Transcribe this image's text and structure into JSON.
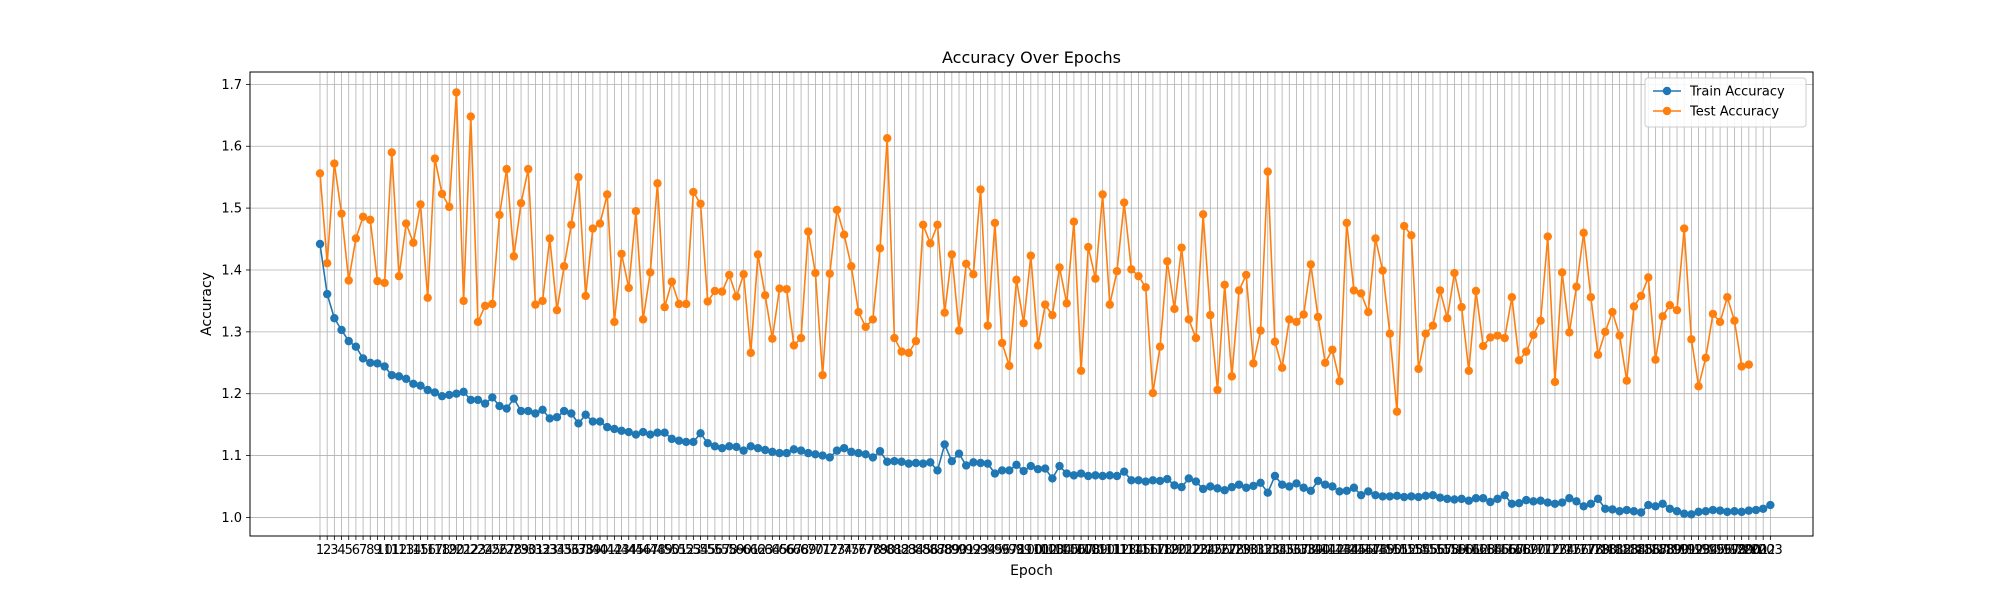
{
  "chart_data": {
    "type": "line",
    "title": "Accuracy Over Epochs",
    "xlabel": "Epoch",
    "ylabel": "Accuracy",
    "ylim": [
      0.97,
      1.72
    ],
    "yticks": [
      1.0,
      1.1,
      1.2,
      1.3,
      1.4,
      1.5,
      1.6,
      1.7
    ],
    "grid": true,
    "legend_position": "top-right",
    "x_start": 1,
    "series": [
      {
        "name": "Train Accuracy",
        "color": "#1f77b4",
        "values": [
          1.442,
          1.361,
          1.322,
          1.303,
          1.285,
          1.276,
          1.257,
          1.25,
          1.249,
          1.244,
          1.23,
          1.228,
          1.224,
          1.216,
          1.213,
          1.206,
          1.202,
          1.196,
          1.198,
          1.2,
          1.203,
          1.19,
          1.19,
          1.184,
          1.194,
          1.18,
          1.176,
          1.192,
          1.172,
          1.172,
          1.168,
          1.174,
          1.16,
          1.162,
          1.172,
          1.168,
          1.152,
          1.166,
          1.155,
          1.155,
          1.146,
          1.143,
          1.14,
          1.138,
          1.134,
          1.138,
          1.134,
          1.137,
          1.137,
          1.127,
          1.124,
          1.122,
          1.122,
          1.136,
          1.12,
          1.115,
          1.112,
          1.115,
          1.114,
          1.108,
          1.115,
          1.112,
          1.109,
          1.106,
          1.104,
          1.104,
          1.11,
          1.108,
          1.104,
          1.102,
          1.1,
          1.097,
          1.108,
          1.112,
          1.106,
          1.104,
          1.102,
          1.097,
          1.107,
          1.09,
          1.091,
          1.09,
          1.087,
          1.088,
          1.087,
          1.089,
          1.076,
          1.118,
          1.091,
          1.103,
          1.084,
          1.089,
          1.088,
          1.087,
          1.071,
          1.076,
          1.076,
          1.085,
          1.075,
          1.083,
          1.078,
          1.079,
          1.063,
          1.083,
          1.071,
          1.068,
          1.071,
          1.067,
          1.068,
          1.067,
          1.068,
          1.067,
          1.074,
          1.06,
          1.06,
          1.058,
          1.06,
          1.059,
          1.062,
          1.052,
          1.049,
          1.063,
          1.058,
          1.046,
          1.05,
          1.047,
          1.044,
          1.049,
          1.053,
          1.048,
          1.051,
          1.056,
          1.04,
          1.067,
          1.053,
          1.05,
          1.055,
          1.048,
          1.043,
          1.059,
          1.053,
          1.05,
          1.042,
          1.043,
          1.048,
          1.036,
          1.042,
          1.036,
          1.034,
          1.034,
          1.035,
          1.033,
          1.034,
          1.033,
          1.035,
          1.036,
          1.032,
          1.03,
          1.029,
          1.03,
          1.027,
          1.031,
          1.031,
          1.025,
          1.03,
          1.036,
          1.022,
          1.023,
          1.028,
          1.026,
          1.027,
          1.024,
          1.022,
          1.024,
          1.031,
          1.026,
          1.018,
          1.022,
          1.03,
          1.014,
          1.013,
          1.01,
          1.012,
          1.01,
          1.008,
          1.02,
          1.018,
          1.022,
          1.014,
          1.01,
          1.006,
          1.005,
          1.009,
          1.01,
          1.012,
          1.011,
          1.009,
          1.01,
          1.009,
          1.011,
          1.012,
          1.014,
          1.02
        ]
      },
      {
        "name": "Test Accuracy",
        "color": "#ff7f0e",
        "values": [
          1.556,
          1.411,
          1.572,
          1.491,
          1.383,
          1.451,
          1.486,
          1.481,
          1.382,
          1.379,
          1.59,
          1.39,
          1.475,
          1.444,
          1.506,
          1.355,
          1.58,
          1.523,
          1.502,
          1.687,
          1.35,
          1.648,
          1.316,
          1.342,
          1.345,
          1.489,
          1.563,
          1.422,
          1.508,
          1.563,
          1.344,
          1.35,
          1.451,
          1.335,
          1.406,
          1.473,
          1.55,
          1.358,
          1.467,
          1.475,
          1.522,
          1.316,
          1.426,
          1.371,
          1.495,
          1.32,
          1.396,
          1.54,
          1.34,
          1.381,
          1.345,
          1.345,
          1.526,
          1.507,
          1.349,
          1.366,
          1.365,
          1.392,
          1.357,
          1.393,
          1.266,
          1.425,
          1.359,
          1.289,
          1.37,
          1.369,
          1.278,
          1.29,
          1.462,
          1.395,
          1.23,
          1.394,
          1.497,
          1.457,
          1.406,
          1.332,
          1.308,
          1.32,
          1.435,
          1.613,
          1.29,
          1.268,
          1.266,
          1.285,
          1.473,
          1.443,
          1.473,
          1.331,
          1.425,
          1.302,
          1.41,
          1.393,
          1.53,
          1.31,
          1.476,
          1.282,
          1.245,
          1.384,
          1.314,
          1.423,
          1.278,
          1.344,
          1.327,
          1.404,
          1.346,
          1.478,
          1.237,
          1.437,
          1.386,
          1.522,
          1.344,
          1.398,
          1.509,
          1.401,
          1.39,
          1.372,
          1.201,
          1.276,
          1.414,
          1.337,
          1.436,
          1.32,
          1.29,
          1.49,
          1.327,
          1.206,
          1.376,
          1.228,
          1.367,
          1.392,
          1.249,
          1.302,
          1.559,
          1.284,
          1.242,
          1.32,
          1.316,
          1.328,
          1.409,
          1.324,
          1.25,
          1.271,
          1.22,
          1.476,
          1.367,
          1.362,
          1.332,
          1.451,
          1.399,
          1.297,
          1.171,
          1.471,
          1.456,
          1.24,
          1.297,
          1.31,
          1.367,
          1.322,
          1.395,
          1.34,
          1.237,
          1.366,
          1.277,
          1.291,
          1.294,
          1.29,
          1.356,
          1.254,
          1.268,
          1.295,
          1.318,
          1.454,
          1.219,
          1.396,
          1.299,
          1.373,
          1.46,
          1.356,
          1.263,
          1.3,
          1.332,
          1.294,
          1.221,
          1.341,
          1.358,
          1.388,
          1.255,
          1.325,
          1.343,
          1.335,
          1.467,
          1.288,
          1.212,
          1.258,
          1.329,
          1.316,
          1.356,
          1.318,
          1.244,
          1.247
        ]
      }
    ]
  }
}
